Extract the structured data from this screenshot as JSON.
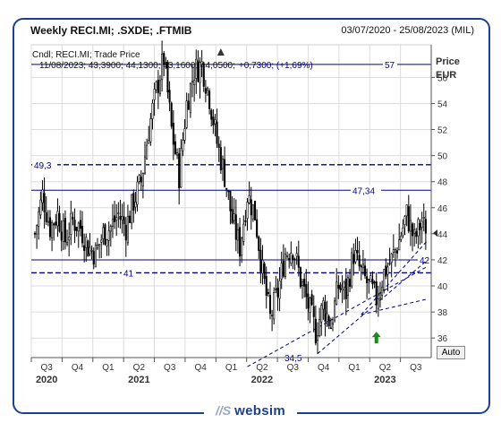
{
  "header": {
    "title": "Weekly RECI.MI; .SXDE; .FTMIB",
    "date_range": "03/07/2020 - 25/08/2023 (MIL)"
  },
  "legend": {
    "line1": "Cndl; RECI.MI; Trade Price",
    "line2_prefix": "11/08/2023; 43,3900; 44,1300; 43,1600; 44,0500;",
    "line2_change": "+0,7300; (+1,69%)"
  },
  "axis": {
    "y_title_1": "Price",
    "y_title_2": "EUR",
    "auto_label": "Auto"
  },
  "logo": {
    "mark": "//S",
    "text": "websim"
  },
  "colors": {
    "frame": "#1d3f8f",
    "level": "#00008b",
    "candle": "#000000",
    "arrow": "#1a8a1a",
    "grid": "#dcdcdc"
  },
  "chart_data": {
    "type": "candlestick",
    "ylim": [
      34.5,
      58.5
    ],
    "y_ticks": [
      36,
      38,
      40,
      42,
      44,
      46,
      48,
      50,
      52,
      54,
      56
    ],
    "y_tick_labels": [
      "36",
      "38",
      "40",
      "42",
      "44",
      "46",
      "48",
      "50",
      "52",
      "54",
      "56"
    ],
    "x_quarter_labels": [
      "Q3",
      "Q4",
      "Q1",
      "Q2",
      "Q3",
      "Q4",
      "Q1",
      "Q2",
      "Q3",
      "Q4",
      "Q1",
      "Q2",
      "Q3"
    ],
    "x_year_labels": [
      "2020",
      "2021",
      "2022",
      "2023"
    ],
    "last_price": 44.05,
    "price_path": [
      [
        0,
        44
      ],
      [
        4,
        47
      ],
      [
        8,
        44.5
      ],
      [
        12,
        45.5
      ],
      [
        16,
        43.5
      ],
      [
        20,
        45
      ],
      [
        24,
        44.5
      ],
      [
        28,
        43
      ],
      [
        32,
        42.5
      ],
      [
        36,
        44
      ],
      [
        40,
        44.5
      ],
      [
        44,
        45.5
      ],
      [
        48,
        44.5
      ],
      [
        52,
        46.5
      ],
      [
        56,
        48
      ],
      [
        60,
        52
      ],
      [
        64,
        55
      ],
      [
        68,
        57.5
      ],
      [
        72,
        52
      ],
      [
        76,
        48.5
      ],
      [
        80,
        54
      ],
      [
        84,
        56.5
      ],
      [
        88,
        57
      ],
      [
        92,
        54.5
      ],
      [
        96,
        51
      ],
      [
        100,
        48.5
      ],
      [
        104,
        45
      ],
      [
        108,
        43
      ],
      [
        112,
        47
      ],
      [
        116,
        45.5
      ],
      [
        120,
        41
      ],
      [
        124,
        37.5
      ],
      [
        128,
        39.5
      ],
      [
        132,
        42.5
      ],
      [
        136,
        43
      ],
      [
        140,
        40.5
      ],
      [
        144,
        38.5
      ],
      [
        148,
        36.5
      ],
      [
        152,
        38.5
      ],
      [
        156,
        37
      ],
      [
        160,
        40
      ],
      [
        164,
        39.5
      ],
      [
        168,
        42.5
      ],
      [
        172,
        41
      ],
      [
        176,
        40
      ],
      [
        180,
        39
      ],
      [
        184,
        41
      ],
      [
        188,
        42
      ],
      [
        192,
        43.5
      ],
      [
        196,
        45.5
      ],
      [
        200,
        43.5
      ],
      [
        204,
        45
      ],
      [
        206,
        44
      ]
    ],
    "horizontal_levels": [
      {
        "value": 57,
        "label": "57",
        "style": "solid"
      },
      {
        "value": 49.3,
        "label": "49,3",
        "style": "dashed"
      },
      {
        "value": 47.34,
        "label": "47,34",
        "style": "solid"
      },
      {
        "value": 42,
        "label": "42",
        "style": "solid"
      },
      {
        "value": 41,
        "label": "41",
        "style": "dashed"
      },
      {
        "value": 34.5,
        "label": "34,5",
        "style": "solid"
      }
    ],
    "trendlines": [
      {
        "from": [
          112,
          33.8
        ],
        "to": [
          207,
          41.5
        ]
      },
      {
        "from": [
          149,
          34.8
        ],
        "to": [
          207,
          42
        ]
      },
      {
        "from": [
          172,
          37.8
        ],
        "to": [
          207,
          43.5
        ]
      },
      {
        "from": [
          172,
          37.8
        ],
        "to": [
          207,
          39
        ]
      }
    ],
    "annotations": [
      {
        "type": "up-arrow",
        "at_week": 180,
        "at_price": 35.8
      }
    ]
  }
}
